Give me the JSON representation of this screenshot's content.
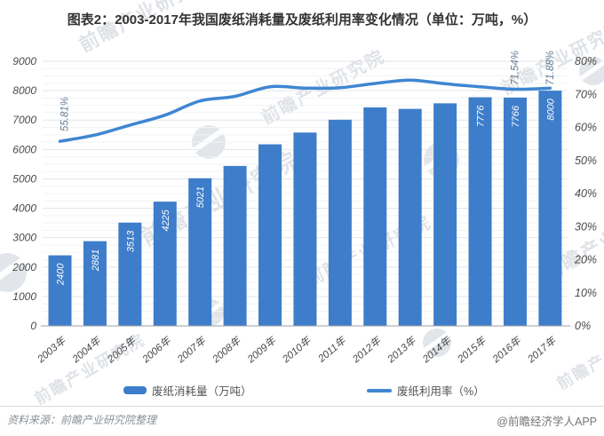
{
  "header": {
    "title": "图表2：2003-2017年我国废纸消耗量及废纸利用率变化情况（单位：万吨，%）"
  },
  "chart_data": {
    "type": "bar",
    "subtype": "combo-bar-line",
    "categories": [
      "2003年",
      "2004年",
      "2005年",
      "2006年",
      "2007年",
      "2008年",
      "2009年",
      "2010年",
      "2011年",
      "2012年",
      "2013年",
      "2014年",
      "2015年",
      "2016年",
      "2017年"
    ],
    "series": [
      {
        "name": "废纸消耗量（万吨）",
        "type": "bar",
        "axis": "left",
        "values": [
          2400,
          2881,
          3513,
          4225,
          5021,
          5439,
          6175,
          6576,
          7012,
          7432,
          7381,
          7570,
          7776,
          7766,
          8000
        ],
        "data_labels": [
          "2400",
          "2881",
          "3513",
          "4225",
          "5021",
          "",
          "",
          "",
          "",
          "",
          "",
          "",
          "7776",
          "7766",
          "8000"
        ]
      },
      {
        "name": "废纸利用率（%）",
        "type": "line",
        "axis": "right",
        "values": [
          55.81,
          57.7,
          60.7,
          63.7,
          68.0,
          69.4,
          72.3,
          71.9,
          72.0,
          73.3,
          74.3,
          73.2,
          72.3,
          71.54,
          71.88
        ],
        "data_labels": [
          "55.81%",
          "",
          "",
          "",
          "",
          "",
          "",
          "",
          "",
          "",
          "",
          "",
          "",
          "71.54%",
          "71.88%"
        ]
      }
    ],
    "left_axis": {
      "min": 0,
      "max": 9000,
      "step": 1000,
      "minor_step": 250
    },
    "right_axis": {
      "min": 0,
      "max": 80,
      "step": 10,
      "suffix": "%"
    },
    "grid": true,
    "legend_position": "bottom"
  },
  "legend": {
    "bar_label": "废纸消耗量（万吨）",
    "line_label": "废纸利用率（%）"
  },
  "footer": {
    "source": "资料来源：前瞻产业研究院整理",
    "credit": "@前瞻经济学人APP"
  },
  "watermark": {
    "text": "前瞻产业研究院"
  },
  "colors": {
    "bar": "#3D7DCA",
    "line": "#3F86D2",
    "bar_label": "#FFFFFF",
    "line_label": "#647C95",
    "axis_text": "#4A4A4A",
    "title": "#333333",
    "grid_major": "#E2E6EA",
    "grid_minor": "#F1F3F5",
    "axis_line": "#9AA0A6",
    "watermark": "#94A0AC",
    "footer_text": "#8A9096"
  }
}
